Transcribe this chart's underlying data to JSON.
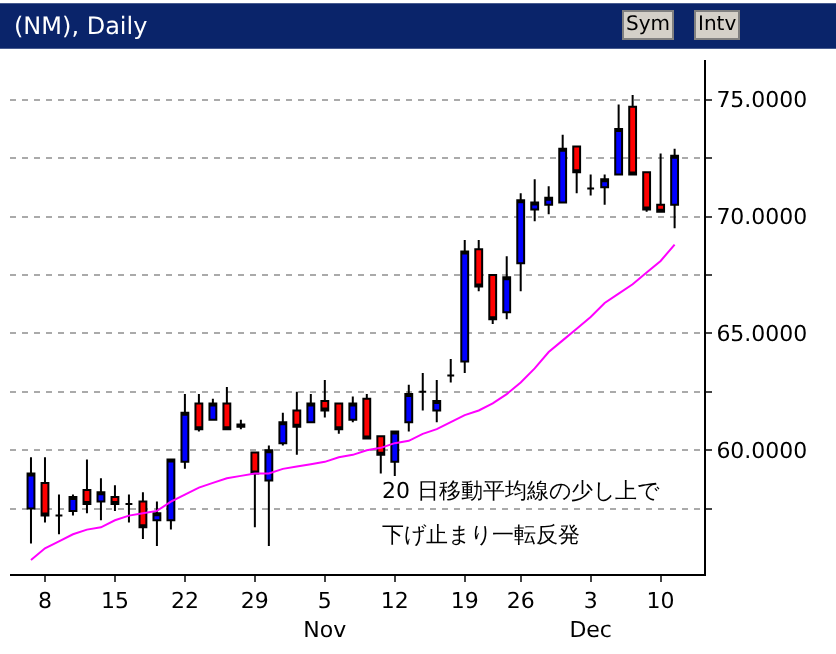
{
  "chart_data": {
    "type": "candlestick",
    "title": "(NM), Daily",
    "categories": [
      null,
      "8",
      null,
      null,
      null,
      null,
      "15",
      null,
      null,
      null,
      null,
      "22",
      null,
      null,
      null,
      null,
      "29",
      null,
      null,
      null,
      null,
      "5\nNov",
      null,
      null,
      null,
      null,
      "12",
      null,
      null,
      null,
      null,
      "19",
      null,
      null,
      null,
      "26",
      null,
      null,
      null,
      null,
      "3\nDec",
      null,
      null,
      null,
      null,
      "10",
      null
    ],
    "ohlc": [
      [
        57.5,
        59.7,
        56.0,
        59.0
      ],
      [
        58.6,
        59.7,
        56.9,
        57.2
      ],
      [
        57.2,
        58.1,
        56.4,
        57.2
      ],
      [
        57.4,
        58.1,
        57.2,
        58.0
      ],
      [
        58.3,
        59.6,
        57.3,
        57.7
      ],
      [
        57.8,
        58.8,
        57.0,
        58.2
      ],
      [
        58.0,
        58.5,
        57.4,
        57.7
      ],
      [
        57.7,
        58.1,
        56.9,
        57.7
      ],
      [
        57.8,
        58.2,
        56.2,
        56.7
      ],
      [
        57.0,
        57.8,
        55.9,
        57.3
      ],
      [
        57.0,
        59.6,
        56.6,
        59.6
      ],
      [
        59.5,
        62.4,
        59.2,
        61.6
      ],
      [
        62.0,
        62.4,
        60.8,
        60.9
      ],
      [
        61.3,
        62.2,
        61.3,
        62.0
      ],
      [
        62.0,
        62.7,
        60.9,
        60.9
      ],
      [
        61.1,
        61.3,
        60.9,
        61.0
      ],
      [
        59.9,
        59.9,
        56.7,
        59.0
      ],
      [
        58.7,
        60.2,
        55.9,
        60.0
      ],
      [
        60.3,
        61.6,
        60.2,
        61.2
      ],
      [
        61.7,
        62.5,
        59.8,
        61.0
      ],
      [
        61.2,
        62.4,
        61.2,
        62.0
      ],
      [
        62.1,
        63.0,
        61.4,
        61.7
      ],
      [
        62.0,
        62.0,
        60.7,
        60.9
      ],
      [
        61.3,
        62.3,
        61.2,
        62.0
      ],
      [
        62.2,
        62.4,
        60.5,
        60.5
      ],
      [
        60.6,
        60.6,
        59.0,
        59.8
      ],
      [
        59.5,
        60.8,
        58.9,
        60.8
      ],
      [
        61.2,
        62.8,
        60.8,
        62.4
      ],
      [
        62.5,
        63.3,
        61.7,
        62.5
      ],
      [
        61.7,
        63.0,
        61.2,
        62.1
      ],
      [
        63.2,
        63.9,
        62.9,
        63.2
      ],
      [
        63.8,
        69.0,
        63.3,
        68.5
      ],
      [
        68.6,
        69.0,
        66.8,
        67.0
      ],
      [
        67.5,
        67.5,
        65.4,
        65.6
      ],
      [
        65.9,
        68.3,
        65.6,
        67.4
      ],
      [
        68.0,
        71.0,
        66.8,
        70.7
      ],
      [
        70.3,
        71.6,
        69.8,
        70.6
      ],
      [
        70.5,
        71.3,
        70.1,
        70.8
      ],
      [
        70.6,
        73.5,
        70.6,
        72.9
      ],
      [
        73.0,
        73.0,
        71.0,
        71.9
      ],
      [
        71.2,
        71.8,
        70.9,
        71.2
      ],
      [
        71.25,
        71.8,
        70.5,
        71.6
      ],
      [
        71.8,
        74.8,
        71.8,
        73.75
      ],
      [
        74.7,
        75.2,
        71.8,
        71.8
      ],
      [
        71.9,
        71.9,
        70.2,
        70.3
      ],
      [
        70.5,
        72.7,
        70.2,
        70.2
      ],
      [
        70.5,
        72.9,
        69.5,
        72.6
      ]
    ],
    "colors": [
      "#0000ff",
      "#ff0000",
      "#000000",
      "#0000ff",
      "#ff0000",
      "#0000ff",
      "#ff0000",
      "#000000",
      "#ff0000",
      "#0000ff",
      "#0000ff",
      "#0000ff",
      "#ff0000",
      "#0000ff",
      "#ff0000",
      "#ff0000",
      "#ff0000",
      "#0000ff",
      "#0000ff",
      "#ff0000",
      "#0000ff",
      "#ff0000",
      "#ff0000",
      "#0000ff",
      "#ff0000",
      "#ff0000",
      "#0000ff",
      "#0000ff",
      "#000000",
      "#0000ff",
      "#000000",
      "#0000ff",
      "#ff0000",
      "#ff0000",
      "#0000ff",
      "#0000ff",
      "#0000ff",
      "#0000ff",
      "#0000ff",
      "#ff0000",
      "#000000",
      "#0000ff",
      "#0000ff",
      "#ff0000",
      "#ff0000",
      "#ff0000",
      "#0000ff"
    ],
    "series": [
      {
        "type": "line",
        "color": "#ff00ff",
        "values": [
          55.3,
          55.8,
          56.1,
          56.4,
          56.6,
          56.7,
          57.0,
          57.2,
          57.3,
          57.4,
          57.8,
          58.1,
          58.4,
          58.6,
          58.8,
          58.9,
          59.0,
          59.0,
          59.2,
          59.3,
          59.4,
          59.5,
          59.7,
          59.8,
          60.0,
          60.1,
          60.3,
          60.4,
          60.7,
          60.9,
          61.2,
          61.5,
          61.7,
          62.0,
          62.4,
          62.9,
          63.5,
          64.2,
          64.7,
          65.2,
          65.7,
          66.3,
          66.7,
          67.1,
          67.6,
          68.1,
          68.8
        ]
      }
    ],
    "ylim": [
      54.7,
      76.7
    ],
    "yticks": [
      {
        "value": 57.5,
        "label": null
      },
      {
        "value": 60,
        "label": "60.0000"
      },
      {
        "value": 62.5,
        "label": null
      },
      {
        "value": 65,
        "label": "65.0000"
      },
      {
        "value": 67.5,
        "label": null
      },
      {
        "value": 70,
        "label": "70.0000"
      },
      {
        "value": 72.5,
        "label": null
      },
      {
        "value": 75,
        "label": "75.0000"
      }
    ],
    "grid": "y",
    "line_style": "solid",
    "annotations": [
      "20 日移動平均線の少し上で",
      "下げ止まり一転反発",
      "Sym",
      "Intv"
    ]
  }
}
